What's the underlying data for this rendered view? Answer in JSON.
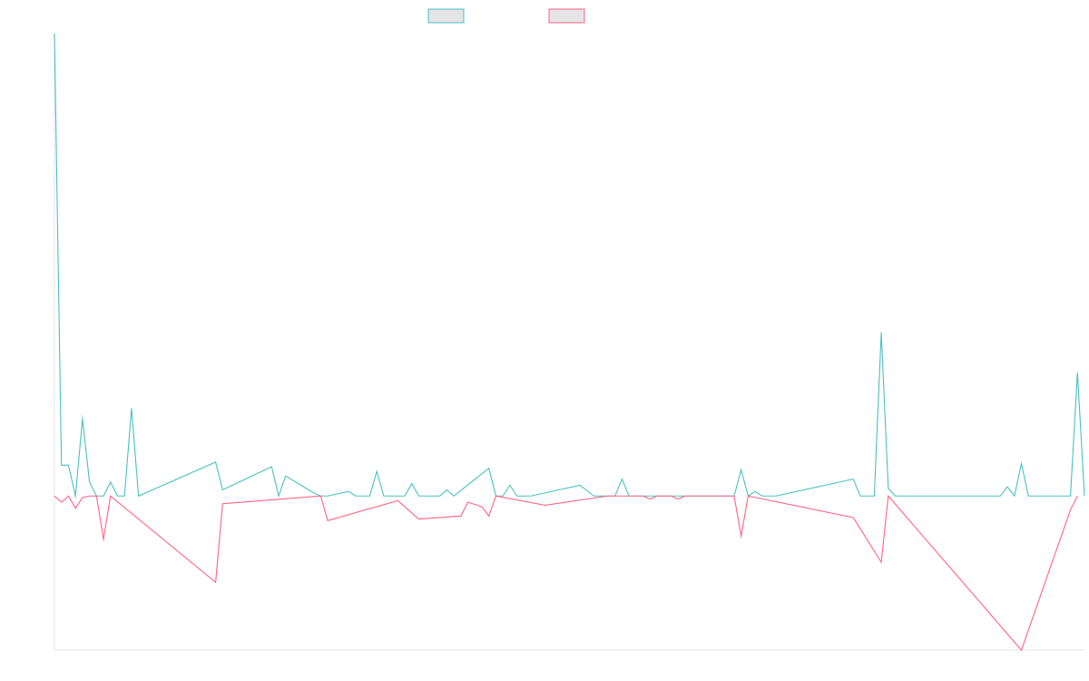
{
  "chart_data": {
    "type": "line",
    "title": "",
    "xlabel": "",
    "ylabel": "",
    "legend_position": "top-center",
    "grid": false,
    "ylim": [
      -100,
      300
    ],
    "x_count": 140,
    "series": [
      {
        "color": "#4BC0C0",
        "fill": "#E5E5E5",
        "points": [
          [
            0,
            300
          ],
          [
            1,
            20
          ],
          [
            2,
            20
          ],
          [
            3,
            0
          ],
          [
            4,
            50
          ],
          [
            5,
            9
          ],
          [
            6,
            0
          ],
          [
            7,
            0
          ],
          [
            8,
            9
          ],
          [
            9,
            0
          ],
          [
            10,
            0
          ],
          [
            11,
            57
          ],
          [
            12,
            0
          ],
          [
            23,
            22
          ],
          [
            24,
            4
          ],
          [
            31,
            19
          ],
          [
            32,
            0
          ],
          [
            33,
            13
          ],
          [
            37,
            2
          ],
          [
            38,
            0
          ],
          [
            39,
            0
          ],
          [
            42,
            3
          ],
          [
            43,
            0
          ],
          [
            44,
            0
          ],
          [
            45,
            0
          ],
          [
            46,
            16
          ],
          [
            47,
            0
          ],
          [
            48,
            0
          ],
          [
            49,
            0
          ],
          [
            50,
            0
          ],
          [
            51,
            8
          ],
          [
            52,
            0
          ],
          [
            53,
            0
          ],
          [
            54,
            0
          ],
          [
            55,
            0
          ],
          [
            56,
            4
          ],
          [
            57,
            0
          ],
          [
            62,
            18
          ],
          [
            63,
            0
          ],
          [
            64,
            0
          ],
          [
            65,
            7
          ],
          [
            66,
            0
          ],
          [
            67,
            0
          ],
          [
            68,
            0
          ],
          [
            75,
            7
          ],
          [
            77,
            0
          ],
          [
            78,
            0
          ],
          [
            79,
            0
          ],
          [
            80,
            0
          ],
          [
            81,
            11
          ],
          [
            82,
            0
          ],
          [
            83,
            0
          ],
          [
            84,
            0
          ],
          [
            85,
            0
          ],
          [
            86,
            0
          ],
          [
            87,
            0
          ],
          [
            88,
            0
          ],
          [
            90,
            0
          ],
          [
            91,
            0
          ],
          [
            92,
            0
          ],
          [
            93,
            0
          ],
          [
            94,
            0
          ],
          [
            95,
            0
          ],
          [
            96,
            0
          ],
          [
            97,
            0
          ],
          [
            98,
            17
          ],
          [
            99,
            0
          ],
          [
            100,
            3
          ],
          [
            101,
            0
          ],
          [
            102,
            0
          ],
          [
            103,
            0
          ],
          [
            114,
            11
          ],
          [
            115,
            0
          ],
          [
            116,
            0
          ],
          [
            117,
            0
          ],
          [
            118,
            106
          ],
          [
            119,
            5
          ],
          [
            120,
            0
          ],
          [
            121,
            0
          ],
          [
            122,
            0
          ],
          [
            123,
            0
          ],
          [
            124,
            0
          ],
          [
            125,
            0
          ],
          [
            126,
            0
          ],
          [
            127,
            0
          ],
          [
            135,
            0
          ],
          [
            136,
            6
          ],
          [
            137,
            0
          ],
          [
            138,
            21
          ],
          [
            139,
            0
          ],
          [
            144,
            0
          ],
          [
            145,
            0
          ],
          [
            146,
            80
          ],
          [
            147,
            0
          ]
        ]
      },
      {
        "color": "#FF6384",
        "fill": "#E5E5E5",
        "points": [
          [
            0,
            0
          ],
          [
            1,
            -4
          ],
          [
            2,
            0
          ],
          [
            3,
            -8
          ],
          [
            4,
            -1
          ],
          [
            5,
            0
          ],
          [
            6,
            0
          ],
          [
            7,
            -28
          ],
          [
            8,
            0
          ],
          [
            23,
            -56
          ],
          [
            24,
            -5
          ],
          [
            38,
            0
          ],
          [
            39,
            -16
          ],
          [
            49,
            -3
          ],
          [
            52,
            -15
          ],
          [
            58,
            -13
          ],
          [
            59,
            -4
          ],
          [
            61,
            -7
          ],
          [
            62,
            -13
          ],
          [
            63,
            0
          ],
          [
            70,
            -6
          ],
          [
            79,
            0
          ],
          [
            80,
            0
          ],
          [
            81,
            0
          ],
          [
            84,
            0
          ],
          [
            85,
            -2
          ],
          [
            86,
            0
          ],
          [
            87,
            0
          ],
          [
            88,
            0
          ],
          [
            89,
            -2
          ],
          [
            90,
            0
          ],
          [
            91,
            0
          ],
          [
            97,
            0
          ],
          [
            98,
            -26
          ],
          [
            99,
            0
          ],
          [
            114,
            -14
          ],
          [
            118,
            -43
          ],
          [
            119,
            0
          ],
          [
            138,
            -100
          ],
          [
            145,
            -9
          ],
          [
            146,
            0
          ]
        ]
      }
    ]
  }
}
